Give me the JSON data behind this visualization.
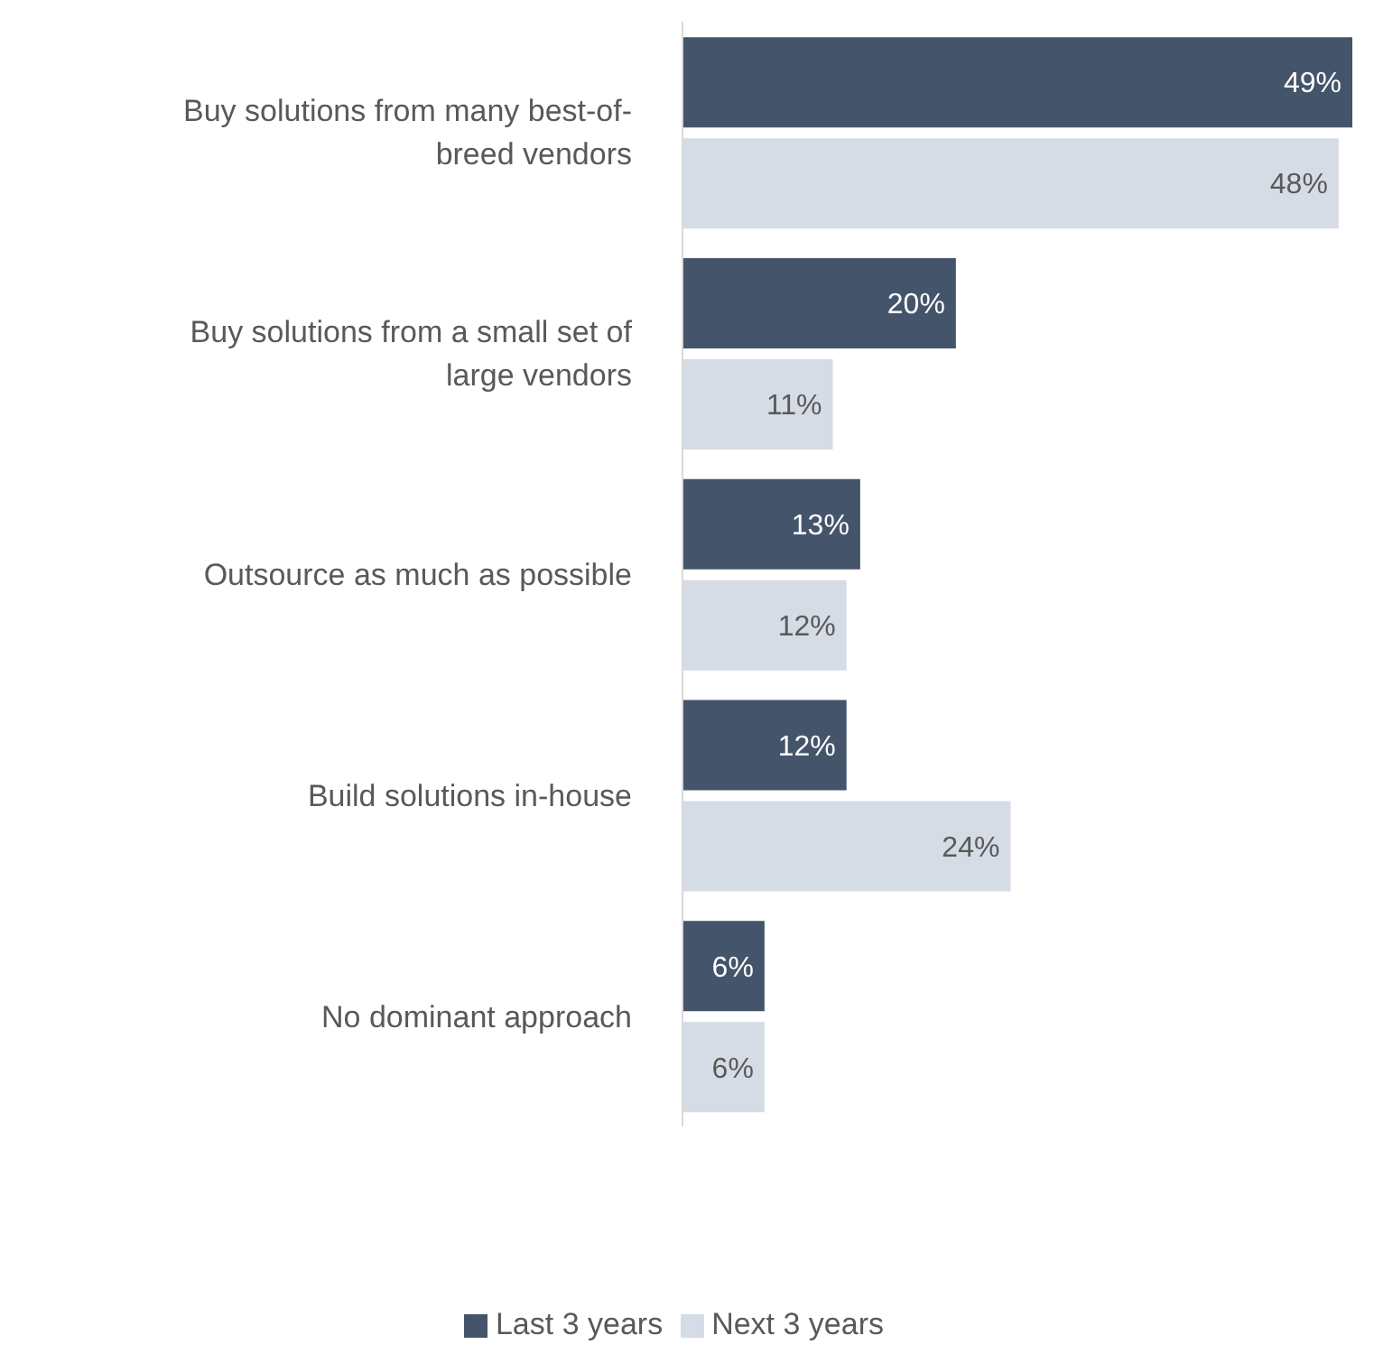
{
  "chart_data": {
    "type": "bar",
    "orientation": "horizontal",
    "categories": [
      "Buy solutions from many best-of-breed vendors",
      "Buy solutions from a small set of large vendors",
      "Outsource as much as possible",
      "Build solutions in-house",
      "No dominant approach"
    ],
    "series": [
      {
        "name": "Last 3 years",
        "color": "#44546a",
        "values": [
          49,
          20,
          13,
          12,
          6
        ],
        "value_labels": [
          "49%",
          "20%",
          "13%",
          "12%",
          "6%"
        ]
      },
      {
        "name": "Next 3 years",
        "color": "#d6dce5",
        "values": [
          48,
          11,
          12,
          24,
          6
        ],
        "value_labels": [
          "48%",
          "11%",
          "12%",
          "24%",
          "6%"
        ]
      }
    ],
    "legend": "bottom"
  }
}
